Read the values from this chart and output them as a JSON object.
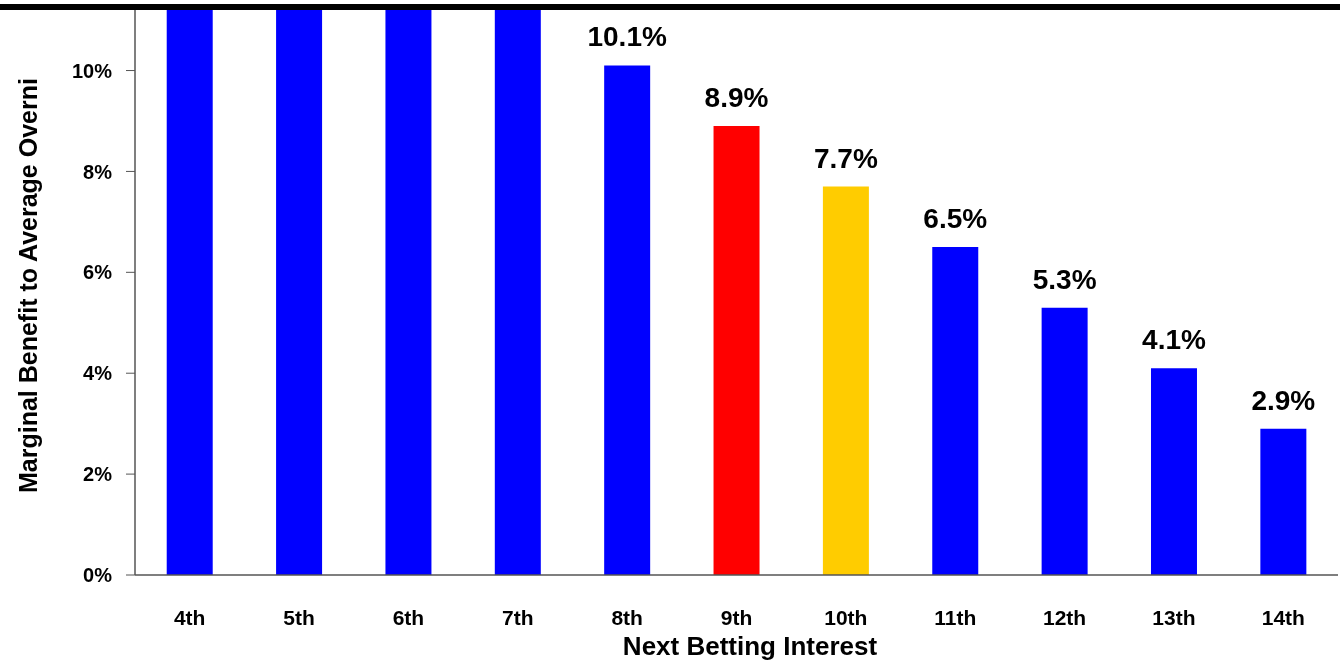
{
  "chart_data": {
    "type": "bar",
    "xlabel": "Next Betting Interest",
    "ylabel": "Marginal Benefit to Average Overni",
    "categories": [
      "4th",
      "5th",
      "6th",
      "7th",
      "8th",
      "9th",
      "10th",
      "11th",
      "12th",
      "13th",
      "14th"
    ],
    "values": [
      11.2,
      11.2,
      11.2,
      11.2,
      10.1,
      8.9,
      7.7,
      6.5,
      5.3,
      4.1,
      2.9
    ],
    "colors": [
      "#0000ff",
      "#0000ff",
      "#0000ff",
      "#0000ff",
      "#0000ff",
      "#ff0000",
      "#ffcc00",
      "#0000ff",
      "#0000ff",
      "#0000ff",
      "#0000ff"
    ],
    "value_labels": [
      null,
      null,
      null,
      null,
      "10.1%",
      "8.9%",
      "7.7%",
      "6.5%",
      "5.3%",
      "4.1%",
      "2.9%"
    ],
    "ylim": [
      0,
      11.2
    ],
    "yticks": [
      {
        "value": 0,
        "label": "0%"
      },
      {
        "value": 2,
        "label": "2%"
      },
      {
        "value": 4,
        "label": "4%"
      },
      {
        "value": 6,
        "label": "6%"
      },
      {
        "value": 8,
        "label": "8%"
      },
      {
        "value": 10,
        "label": "10%"
      }
    ]
  }
}
